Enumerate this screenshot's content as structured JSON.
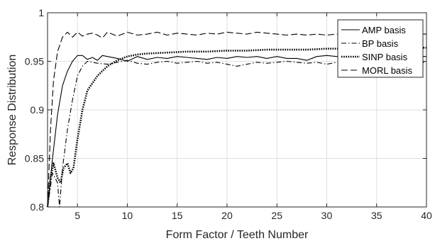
{
  "chart_data": {
    "type": "line",
    "xlabel": "Form Factor / Teeth Number",
    "ylabel": "Response Distribution",
    "xlim": [
      2,
      40
    ],
    "ylim": [
      0.8,
      1.0
    ],
    "xticks": [
      5,
      10,
      15,
      20,
      25,
      30,
      35,
      40
    ],
    "yticks": [
      0.8,
      0.85,
      0.9,
      0.95,
      1.0
    ],
    "ytick_labels": [
      "0.8",
      "0.85",
      "0.9",
      "0.95",
      "1"
    ],
    "grid": true,
    "legend_position": "top-right",
    "series": [
      {
        "name": "AMP basis",
        "style": "solid",
        "x": [
          2,
          2.5,
          3,
          3.5,
          4,
          4.5,
          5,
          5.5,
          6,
          6.5,
          7,
          7.5,
          8,
          9,
          10,
          11,
          12,
          13,
          14,
          15,
          16,
          17,
          18,
          19,
          20,
          21,
          22,
          23,
          24,
          25,
          26,
          27,
          28,
          29,
          30,
          31,
          32,
          33,
          34,
          35,
          36,
          37,
          38,
          39,
          40
        ],
        "values": [
          0.8,
          0.85,
          0.895,
          0.925,
          0.94,
          0.95,
          0.956,
          0.956,
          0.952,
          0.954,
          0.951,
          0.956,
          0.955,
          0.953,
          0.95,
          0.955,
          0.952,
          0.954,
          0.953,
          0.955,
          0.954,
          0.953,
          0.952,
          0.954,
          0.953,
          0.955,
          0.954,
          0.955,
          0.953,
          0.955,
          0.953,
          0.953,
          0.951,
          0.955,
          0.956,
          0.955,
          0.954,
          0.955,
          0.954,
          0.955,
          0.954,
          0.955,
          0.954,
          0.955,
          0.955
        ]
      },
      {
        "name": "BP basis",
        "style": "dashdot",
        "x": [
          2,
          2.5,
          3,
          3.2,
          3.5,
          4,
          4.5,
          5,
          5.5,
          6,
          6.5,
          7,
          8,
          9,
          10,
          11,
          12,
          13,
          14,
          15,
          16,
          17,
          18,
          19,
          20,
          21,
          22,
          23,
          24,
          25,
          26,
          27,
          28,
          29,
          30,
          31,
          32,
          33,
          34,
          35,
          36,
          37,
          38,
          39,
          40
        ],
        "values": [
          0.8,
          0.835,
          0.825,
          0.8,
          0.84,
          0.88,
          0.91,
          0.935,
          0.945,
          0.95,
          0.949,
          0.948,
          0.947,
          0.949,
          0.951,
          0.948,
          0.947,
          0.949,
          0.95,
          0.948,
          0.949,
          0.95,
          0.948,
          0.949,
          0.947,
          0.945,
          0.947,
          0.949,
          0.948,
          0.949,
          0.95,
          0.949,
          0.948,
          0.949,
          0.947,
          0.949,
          0.948,
          0.949,
          0.95,
          0.949,
          0.948,
          0.949,
          0.95,
          0.949,
          0.949
        ]
      },
      {
        "name": "SINP basis",
        "style": "dotted",
        "x": [
          2,
          2.3,
          2.6,
          3,
          3.3,
          3.6,
          4,
          4.3,
          4.6,
          5,
          5.5,
          6,
          7,
          8,
          9,
          10,
          11,
          12,
          14,
          16,
          18,
          20,
          22,
          24,
          26,
          28,
          30,
          32,
          34,
          36,
          38,
          40
        ],
        "values": [
          0.8,
          0.83,
          0.845,
          0.83,
          0.825,
          0.84,
          0.845,
          0.835,
          0.84,
          0.87,
          0.9,
          0.92,
          0.935,
          0.945,
          0.951,
          0.955,
          0.957,
          0.958,
          0.959,
          0.96,
          0.96,
          0.961,
          0.961,
          0.962,
          0.962,
          0.962,
          0.963,
          0.963,
          0.963,
          0.963,
          0.964,
          0.964
        ]
      },
      {
        "name": "MORL basis",
        "style": "dashed",
        "x": [
          2,
          2.3,
          2.6,
          3,
          3.5,
          4,
          4.5,
          5,
          5.5,
          6,
          6.5,
          7,
          7.5,
          8,
          9,
          10,
          11,
          12,
          13,
          14,
          15,
          16,
          17,
          18,
          19,
          20,
          21,
          22,
          23,
          24,
          25,
          26,
          27,
          28,
          29,
          30,
          31,
          32,
          33,
          34,
          35,
          36,
          37,
          38,
          39,
          40
        ],
        "values": [
          0.8,
          0.88,
          0.93,
          0.96,
          0.975,
          0.98,
          0.975,
          0.98,
          0.976,
          0.978,
          0.979,
          0.977,
          0.974,
          0.98,
          0.976,
          0.98,
          0.977,
          0.978,
          0.98,
          0.977,
          0.979,
          0.978,
          0.977,
          0.979,
          0.978,
          0.98,
          0.979,
          0.978,
          0.98,
          0.979,
          0.978,
          0.977,
          0.978,
          0.977,
          0.978,
          0.977,
          0.978,
          0.978,
          0.977,
          0.978,
          0.978,
          0.978,
          0.977,
          0.978,
          0.978,
          0.978
        ]
      }
    ]
  }
}
